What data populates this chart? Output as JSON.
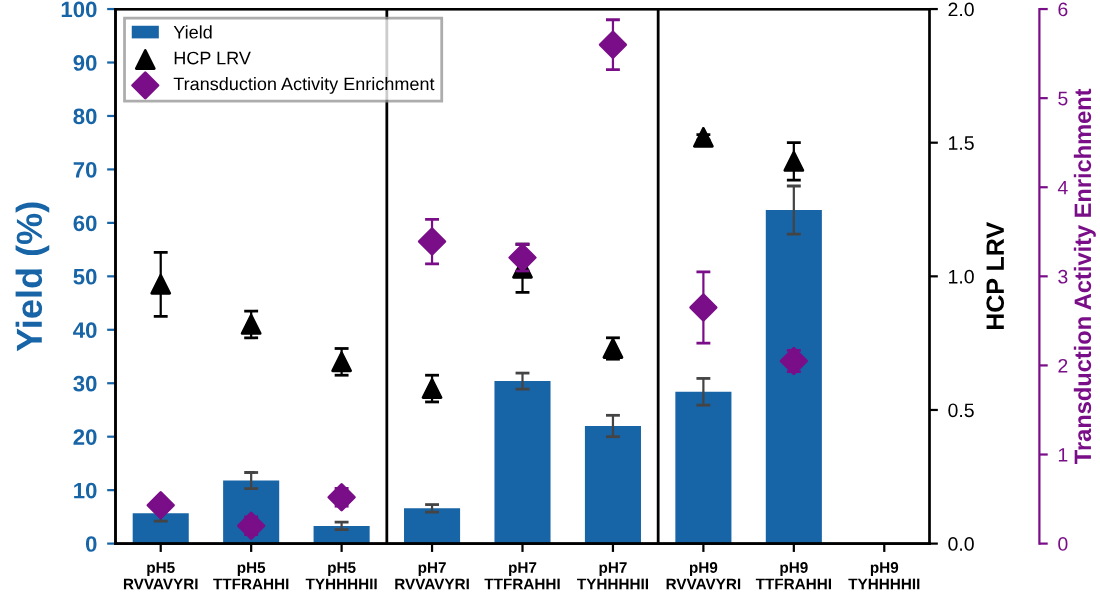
{
  "chart_data": {
    "type": "bar",
    "categories": [
      "pH5\nRVVAVYRI",
      "pH5\nTTFRAHHI",
      "pH5\nTYHHHHII",
      "pH7\nRVVAVYRI",
      "pH7\nTTFRAHHI",
      "pH7\nTYHHHHII",
      "pH9\nRVVAVYRI",
      "pH9\nTTFRAHHI",
      "pH9\nTYHHHHII"
    ],
    "ylabel": "Yield (%)",
    "y2label": "HCP LRV",
    "y3label": "Transduction Activity Enrichment",
    "ylim": [
      0,
      100
    ],
    "yticks": [
      0,
      10,
      20,
      30,
      40,
      50,
      60,
      70,
      80,
      90,
      100
    ],
    "y2lim": [
      0,
      2
    ],
    "y2ticks": [
      {
        "value": 0,
        "label": "0.0"
      },
      {
        "value": 0.5,
        "label": "0.5"
      },
      {
        "value": 1,
        "label": "1.0"
      },
      {
        "value": 1.5,
        "label": "1.5"
      },
      {
        "value": 2,
        "label": "2.0"
      }
    ],
    "y3lim": [
      0,
      6
    ],
    "y3ticks": [
      0,
      1,
      2,
      3,
      4,
      5,
      6
    ],
    "series": [
      {
        "name": "Yield",
        "color": "#1764a6",
        "values": [
          5.7,
          11.8,
          3.3,
          6.6,
          30.4,
          22.0,
          28.4,
          62.4,
          null
        ],
        "errors": [
          1.5,
          1.5,
          0.7,
          0.7,
          1.5,
          2.0,
          2.5,
          4.5,
          null
        ]
      },
      {
        "name": "HCP LRV",
        "type": "scatter",
        "axis": "y2",
        "marker": "triangle",
        "color": "#000000",
        "values": [
          0.97,
          0.82,
          0.68,
          0.58,
          1.03,
          0.73,
          1.52,
          1.43,
          null
        ],
        "errors": [
          0.12,
          0.05,
          0.05,
          0.05,
          0.09,
          0.04,
          0.01,
          0.07,
          null
        ]
      },
      {
        "name": "Transduction Activity Enrichment",
        "type": "scatter",
        "axis": "y3",
        "marker": "diamond",
        "color": "#7a0e88",
        "values": [
          0.43,
          0.2,
          0.52,
          3.39,
          3.21,
          5.6,
          2.65,
          2.05,
          null
        ],
        "errors": [
          0.06,
          0.1,
          0.1,
          0.25,
          0.15,
          0.28,
          0.4,
          0.12,
          null
        ]
      }
    ],
    "legend": "top left",
    "grid": false
  }
}
